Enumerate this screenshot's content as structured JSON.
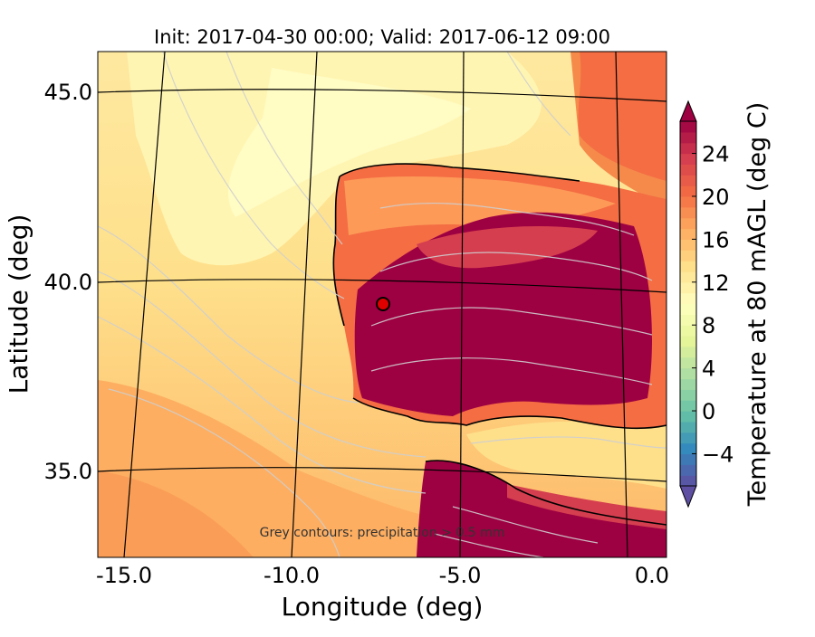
{
  "map": {
    "title": "Init: 2017-04-30 00:00; Valid: 2017-06-12 09:00",
    "xlabel": "Longitude (deg)",
    "ylabel": "Latitude (deg)",
    "x_ticks": [
      "-15.0",
      "-10.0",
      "-5.0",
      "0.0"
    ],
    "y_ticks": [
      "45.0",
      "40.0",
      "35.0"
    ],
    "annotation": "Grey contours: precipitation > 0.5 mm",
    "marker": {
      "description": "red circle site marker",
      "color": "#e00000",
      "lon": -7.6,
      "lat": 39.3
    }
  },
  "colorbar": {
    "label": "Temperature at 80 mAGL (deg C)",
    "ticks": [
      "−4",
      "0",
      "4",
      "8",
      "12",
      "16",
      "20",
      "24"
    ],
    "tick_values": [
      -4,
      0,
      4,
      8,
      12,
      16,
      20,
      24
    ],
    "min": -7,
    "max": 27,
    "extend": "both",
    "colormap": "Spectral_r"
  },
  "colors": {
    "ocean_light": "#fef6b4",
    "ocean_mid": "#fee08b",
    "ocean_warm": "#fdae61",
    "land_hot": "#9e0142",
    "land_warm": "#d53e4f",
    "land_mid": "#f46d43",
    "contour_grey": "#c8c8c8",
    "graticule": "#000000"
  }
}
